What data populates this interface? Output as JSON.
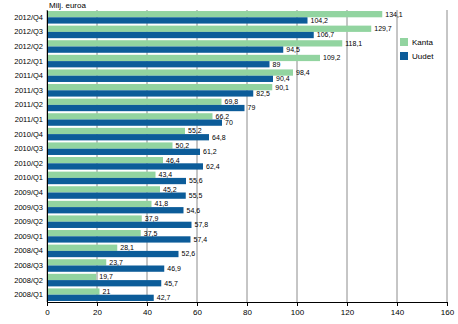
{
  "chart_data": {
    "type": "bar",
    "orientation": "horizontal",
    "x_label": "Milj. euroa",
    "categories": [
      "2012/Q4",
      "2012/Q3",
      "2012/Q2",
      "2012/Q1",
      "2011/Q4",
      "2011/Q3",
      "2011/Q2",
      "2011/Q1",
      "2010/Q4",
      "2010/Q3",
      "2010/Q2",
      "2010/Q1",
      "2009/Q4",
      "2009/Q3",
      "2009/Q2",
      "2009/Q1",
      "2008/Q4",
      "2008/Q3",
      "2008/Q2",
      "2008/Q1"
    ],
    "series": [
      {
        "name": "Kanta",
        "color": "#92d4a0",
        "values": [
          134.1,
          129.7,
          118.1,
          109.2,
          98.4,
          90.1,
          69.8,
          66.2,
          55.2,
          50.2,
          46.4,
          43.4,
          45.2,
          41.8,
          37.9,
          37.5,
          28.1,
          23.7,
          19.7,
          21
        ],
        "value_labels": [
          "134,1",
          "129,7",
          "118,1",
          "109,2",
          "98,4",
          "90,1",
          "69,8",
          "66,2",
          "55,2",
          "50,2",
          "46,4",
          "43,4",
          "45,2",
          "41,8",
          "37,9",
          "37,5",
          "28,1",
          "23,7",
          "19,7",
          "21"
        ]
      },
      {
        "name": "Uudet",
        "color": "#0c5c99",
        "values": [
          104.2,
          106.7,
          94.5,
          89,
          90.4,
          82.5,
          79,
          70,
          64.8,
          61.2,
          62.4,
          55.6,
          55.5,
          54.6,
          57.8,
          57.4,
          52.6,
          46.9,
          45.7,
          42.7
        ],
        "value_labels": [
          "104,2",
          "106,7",
          "94,5",
          "89",
          "90,4",
          "82,5",
          "79",
          "70",
          "64,8",
          "61,2",
          "62,4",
          "55,6",
          "55,5",
          "54,6",
          "57,8",
          "57,4",
          "52,6",
          "46,9",
          "45,7",
          "42,7"
        ]
      }
    ],
    "xlim": [
      0,
      160
    ],
    "xticks": [
      0,
      20,
      40,
      60,
      80,
      100,
      120,
      140,
      160
    ],
    "grid": true,
    "legend": "right",
    "data_labels": true
  }
}
